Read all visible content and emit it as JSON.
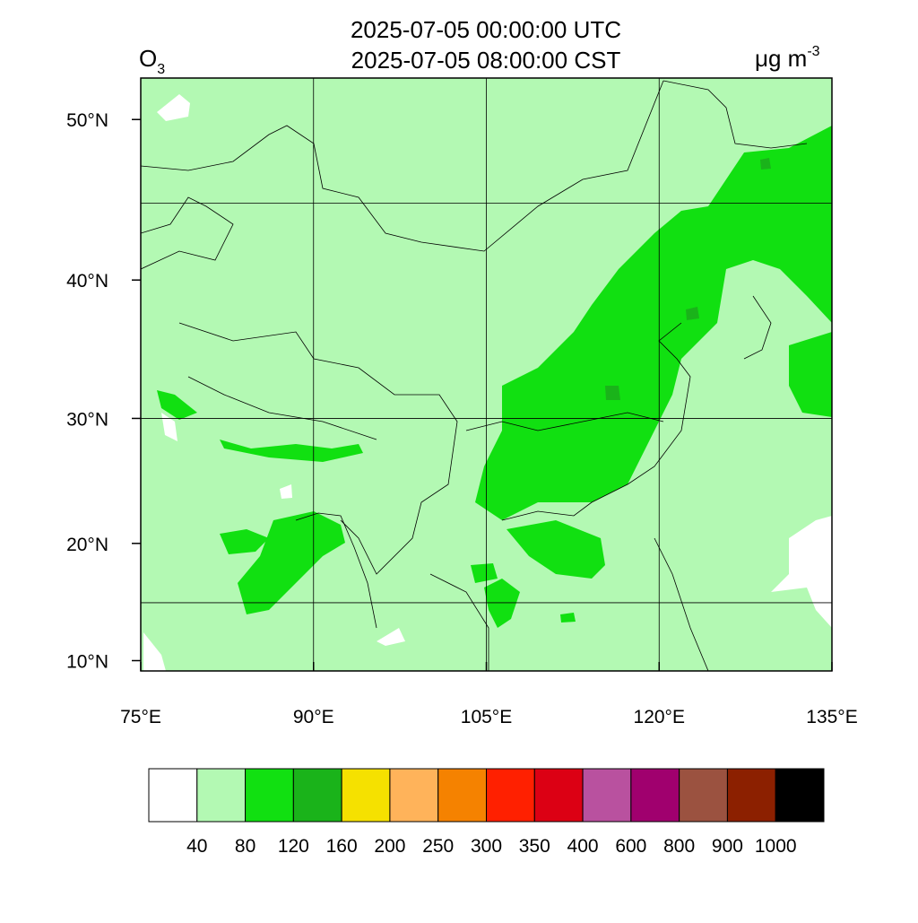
{
  "header": {
    "title_lines": [
      "2025-07-05 00:00:00 UTC",
      "2025-07-05 08:00:00 CST"
    ],
    "variable": {
      "base": "O",
      "sub": "3"
    },
    "units": {
      "base": "μg m",
      "sup": "-3"
    }
  },
  "map": {
    "xlim": [
      75,
      135
    ],
    "ylim": [
      9.1,
      52.3
    ],
    "xticks": [
      {
        "value": 75,
        "label": "75°E"
      },
      {
        "value": 90,
        "label": "90°E"
      },
      {
        "value": 105,
        "label": "105°E"
      },
      {
        "value": 120,
        "label": "120°E"
      },
      {
        "value": 135,
        "label": "135°E"
      }
    ],
    "yticks": [
      {
        "value": 10,
        "label": "10°N"
      },
      {
        "value": 20,
        "label": "20°N"
      },
      {
        "value": 30,
        "label": "30°N"
      },
      {
        "value": 40,
        "label": "40°N"
      },
      {
        "value": 50,
        "label": "50°N"
      }
    ],
    "grid": {
      "lon": [
        90,
        105,
        120
      ],
      "lat": [
        15,
        30,
        45
      ]
    }
  },
  "colorbar": {
    "levels": [
      "40",
      "80",
      "120",
      "160",
      "200",
      "250",
      "300",
      "350",
      "400",
      "600",
      "800",
      "900",
      "1000"
    ],
    "colors": [
      "#ffffff",
      "#b3f9b3",
      "#11e011",
      "#1ab31a",
      "#f5e100",
      "#ffb35a",
      "#f58200",
      "#ff2000",
      "#dc0014",
      "#b9519f",
      "#a0006e",
      "#9b5240",
      "#8c2000",
      "#000000"
    ]
  }
}
